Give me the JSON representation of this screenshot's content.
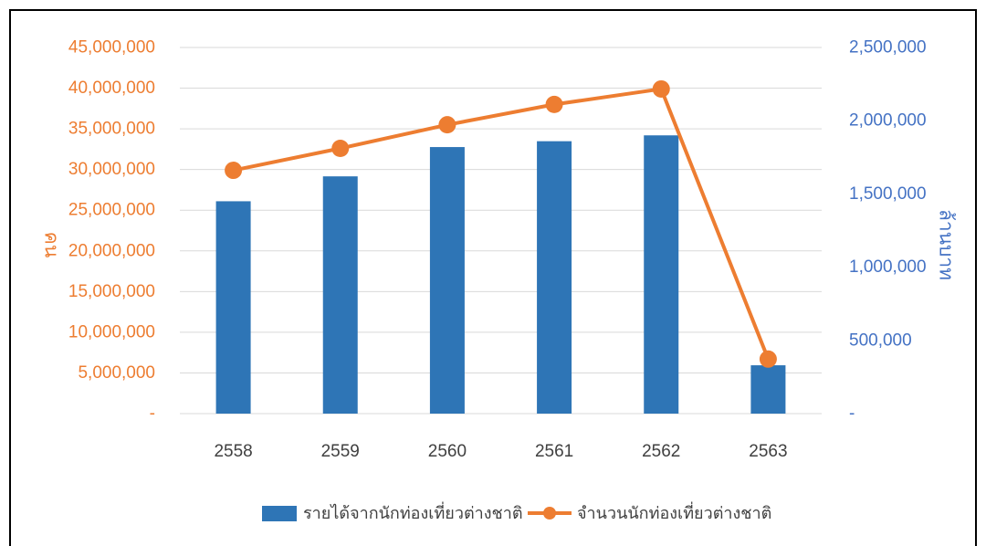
{
  "colors": {
    "left_axis": "#ED7D31",
    "right_axis": "#4472C4",
    "bar": "#2E75B6",
    "line": "#ED7D31",
    "grid": "#D9D9D9",
    "tick_x": "#404040"
  },
  "chart_data": {
    "type": "bar",
    "categories": [
      "2558",
      "2559",
      "2560",
      "2561",
      "2562",
      "2563"
    ],
    "series": [
      {
        "name": "รายได้จากนักท่องเที่ยวต่างชาติ",
        "type": "bar",
        "axis": "right",
        "values": [
          1450000,
          1620000,
          1820000,
          1860000,
          1900000,
          330000
        ]
      },
      {
        "name": "จำนวนนักท่องเที่ยวต่างชาติ",
        "type": "line",
        "axis": "left",
        "values": [
          29900000,
          32600000,
          35500000,
          38000000,
          39900000,
          6700000
        ]
      }
    ],
    "left_axis": {
      "label": "คน",
      "ylim": [
        0,
        45000000
      ],
      "tick_labels": [
        "-",
        "5,000,000",
        "10,000,000",
        "15,000,000",
        "20,000,000",
        "25,000,000",
        "30,000,000",
        "35,000,000",
        "40,000,000",
        "45,000,000"
      ]
    },
    "right_axis": {
      "label": "ล้านบาท",
      "ylim": [
        0,
        2500000
      ],
      "tick_labels": [
        "-",
        "500,000",
        "1,000,000",
        "1,500,000",
        "2,000,000",
        "2,500,000"
      ]
    },
    "grid": true,
    "legend_position": "bottom"
  }
}
